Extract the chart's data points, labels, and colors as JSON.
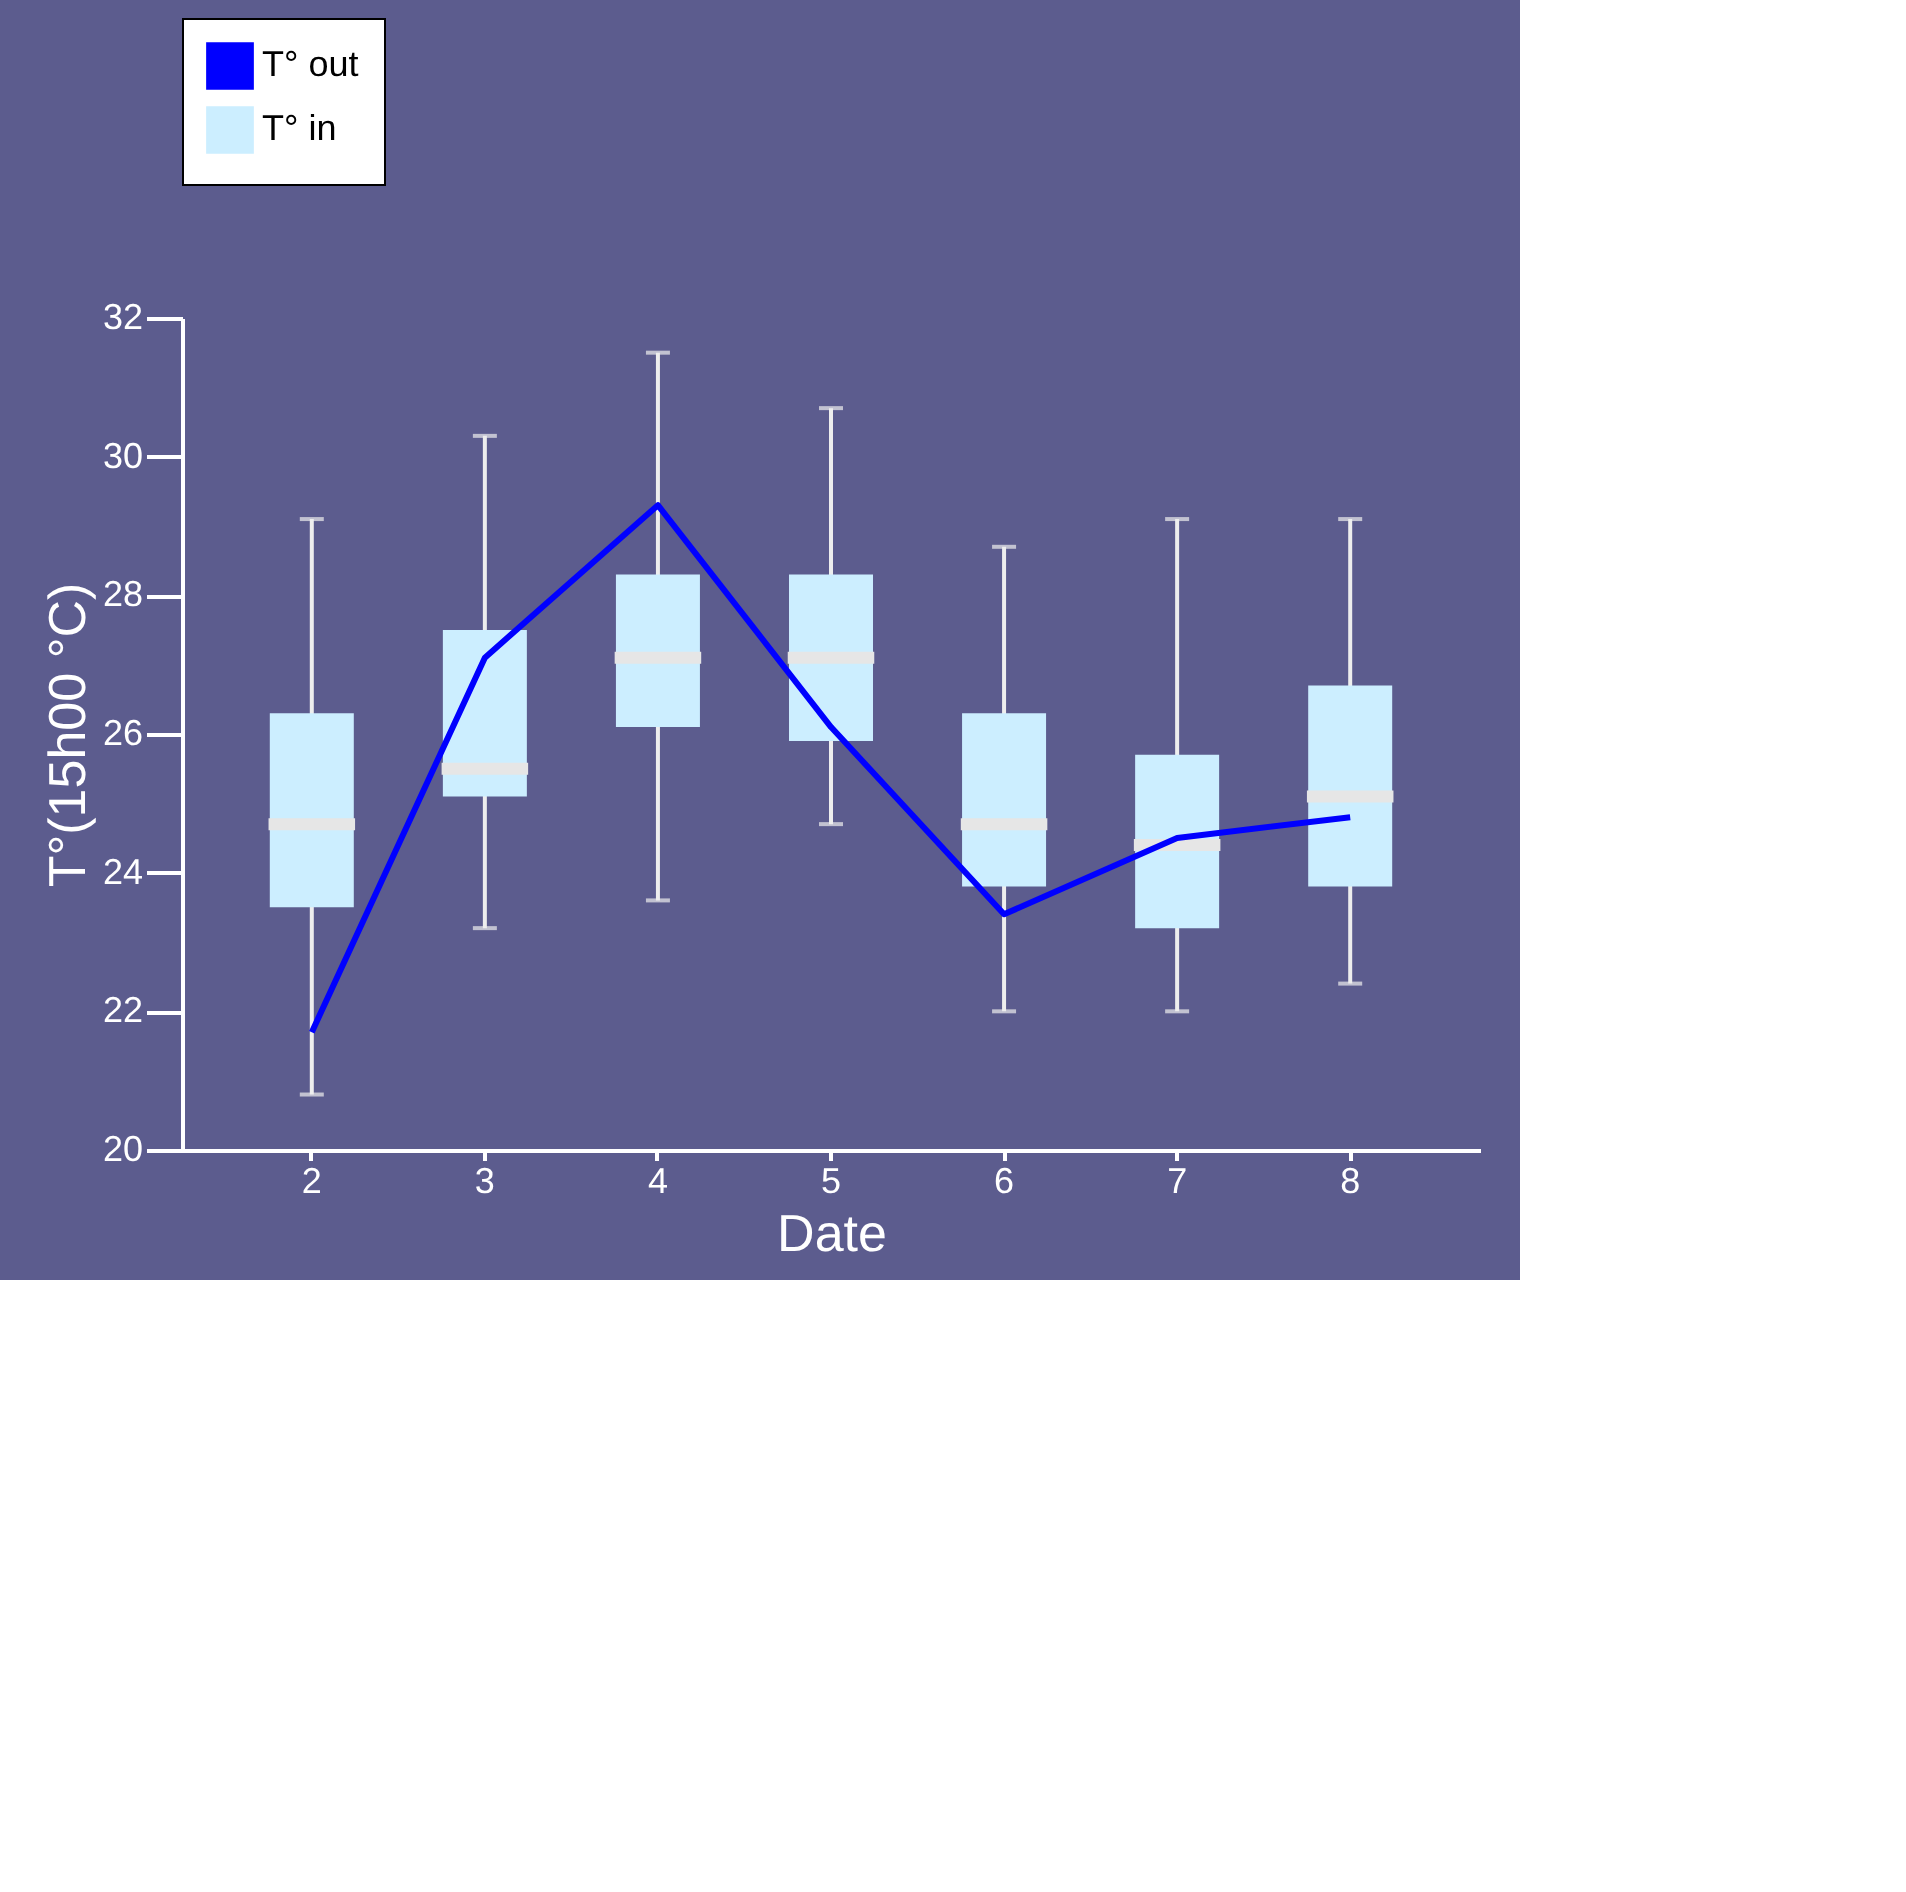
{
  "chart_data": {
    "type": "box",
    "categories": [
      "2",
      "3",
      "4",
      "5",
      "6",
      "7",
      "8"
    ],
    "xlabel": "Date",
    "ylabel": "T°(15h00 °C)",
    "ylim": [
      20,
      32
    ],
    "yticks": [
      20,
      22,
      24,
      26,
      28,
      30,
      32
    ],
    "grid": false,
    "legend": "top left",
    "series": [
      {
        "name": "T° out",
        "type": "line",
        "color": "#0000ff",
        "values": [
          21.7,
          27.1,
          29.3,
          26.1,
          23.4,
          24.5,
          24.8
        ]
      },
      {
        "name": "T° in",
        "color": "#cceeff",
        "boxes": [
          {
            "low": 20.8,
            "q1": 23.5,
            "median": 24.7,
            "q3": 26.3,
            "high": 29.1
          },
          {
            "low": 23.2,
            "q1": 25.1,
            "median": 25.5,
            "q3": 27.5,
            "high": 30.3
          },
          {
            "low": 23.6,
            "q1": 26.1,
            "median": 27.1,
            "q3": 28.3,
            "high": 31.5
          },
          {
            "low": 24.7,
            "q1": 25.9,
            "median": 27.1,
            "q3": 28.3,
            "high": 30.7
          },
          {
            "low": 22.0,
            "q1": 23.8,
            "median": 24.7,
            "q3": 26.3,
            "high": 28.7
          },
          {
            "low": 22.0,
            "q1": 23.2,
            "median": 24.4,
            "q3": 25.7,
            "high": 29.1
          },
          {
            "low": 22.4,
            "q1": 23.8,
            "median": 25.1,
            "q3": 26.7,
            "high": 29.1
          }
        ]
      }
    ]
  }
}
